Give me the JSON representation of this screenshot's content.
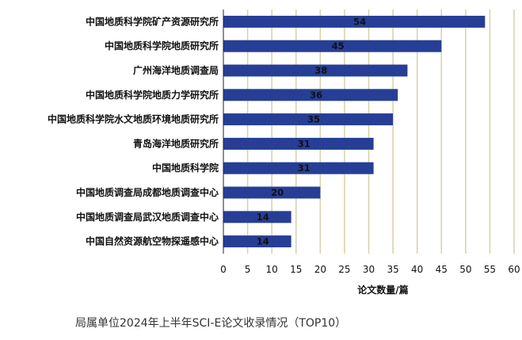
{
  "chart_data": {
    "type": "bar",
    "orientation": "horizontal",
    "categories": [
      "中国地质科学院矿产资源研究所",
      "中国地质科学院地质研究所",
      "广州海洋地质调查局",
      "中国地质科学院地质力学研究所",
      "中国地质科学院水文地质环境地质研究所",
      "青岛海洋地质研究所",
      "中国地质科学院",
      "中国地质调查局成都地质调查中心",
      "中国地质调查局武汉地质调查中心",
      "中国自然资源航空物探遥感中心"
    ],
    "values": [
      54,
      45,
      38,
      36,
      35,
      31,
      31,
      20,
      14,
      14
    ],
    "xlabel": "论文数量/篇",
    "xlim": [
      0,
      60
    ],
    "xticks": [
      "0",
      "5",
      "10",
      "15",
      "20",
      "25",
      "30",
      "35",
      "40",
      "45",
      "50",
      "55",
      "60"
    ],
    "grid": "vertical",
    "bar_color": "#263e96",
    "grid_color": "#d6d1a6"
  },
  "caption": "局属单位2024年上半年SCI-E论文收录情况（TOP10）"
}
